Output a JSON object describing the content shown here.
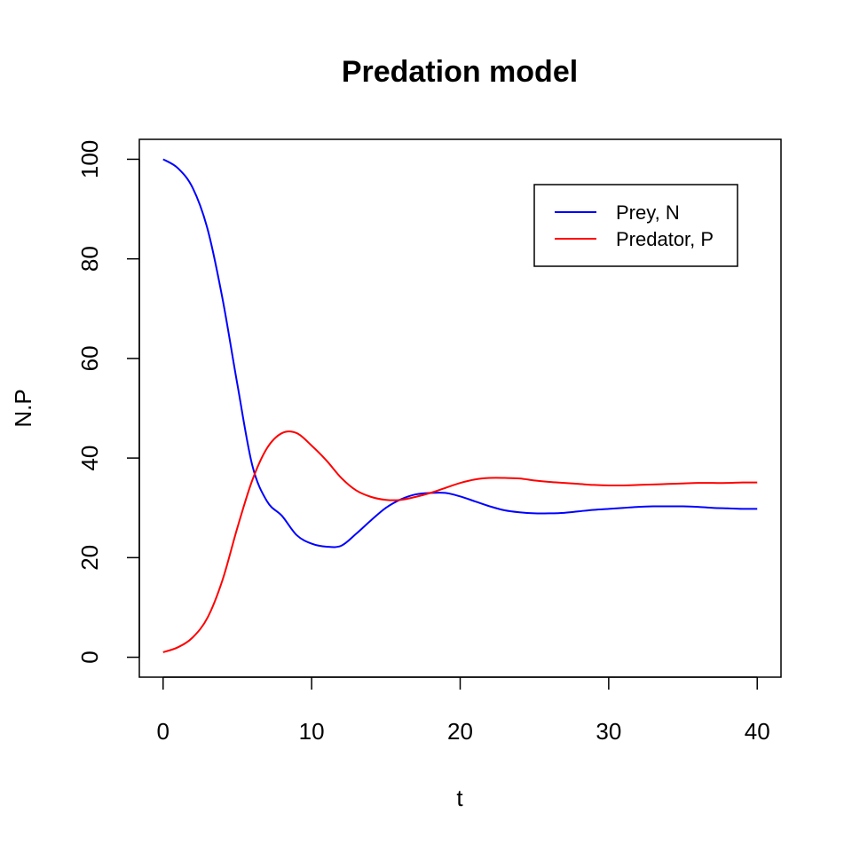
{
  "chart_data": {
    "type": "line",
    "title": "Predation model",
    "xlabel": "t",
    "ylabel": "N.P",
    "xlim": [
      -1.6,
      41.6
    ],
    "ylim": [
      -4,
      104
    ],
    "xticks": [
      0,
      10,
      20,
      30,
      40
    ],
    "yticks": [
      0,
      20,
      40,
      60,
      80,
      100
    ],
    "grid": false,
    "legend_position": "top-right",
    "series": [
      {
        "name": "Prey, N",
        "color": "#0000ff",
        "x": [
          0,
          1,
          2,
          3,
          4,
          5,
          6,
          7,
          8,
          9,
          10,
          11,
          12,
          13,
          14,
          15,
          16,
          17,
          18,
          19,
          20,
          21,
          22,
          23,
          24,
          25,
          26,
          27,
          28,
          29,
          30,
          31,
          32,
          33,
          34,
          35,
          36,
          37,
          38,
          39,
          40
        ],
        "values": [
          100,
          98.2,
          94.2,
          85.9,
          72.0,
          54.8,
          38.6,
          31.3,
          28.4,
          24.5,
          22.8,
          22.2,
          22.4,
          24.8,
          27.5,
          30.0,
          31.7,
          32.7,
          33.0,
          33.0,
          32.3,
          31.3,
          30.3,
          29.5,
          29.1,
          28.9,
          28.9,
          29.0,
          29.3,
          29.6,
          29.8,
          30.0,
          30.2,
          30.3,
          30.3,
          30.3,
          30.2,
          30.0,
          29.9,
          29.8,
          29.8
        ]
      },
      {
        "name": "Predator, P",
        "color": "#ff0000",
        "x": [
          0,
          1,
          2,
          3,
          4,
          5,
          6,
          7,
          8,
          9,
          10,
          11,
          12,
          13,
          14,
          15,
          16,
          17,
          18,
          19,
          20,
          21,
          22,
          23,
          24,
          25,
          26,
          27,
          28,
          29,
          30,
          31,
          32,
          33,
          34,
          35,
          36,
          37,
          38,
          39,
          40
        ],
        "values": [
          1,
          2,
          4,
          8,
          15.5,
          26,
          35.5,
          42,
          45,
          45,
          42.5,
          39.5,
          36,
          33.5,
          32.2,
          31.6,
          31.6,
          32.2,
          33.0,
          34.0,
          35.0,
          35.7,
          36.0,
          36.0,
          35.9,
          35.5,
          35.2,
          35.0,
          34.8,
          34.6,
          34.5,
          34.5,
          34.6,
          34.7,
          34.8,
          34.9,
          35.0,
          35.0,
          35.0,
          35.1,
          35.1
        ]
      }
    ]
  }
}
